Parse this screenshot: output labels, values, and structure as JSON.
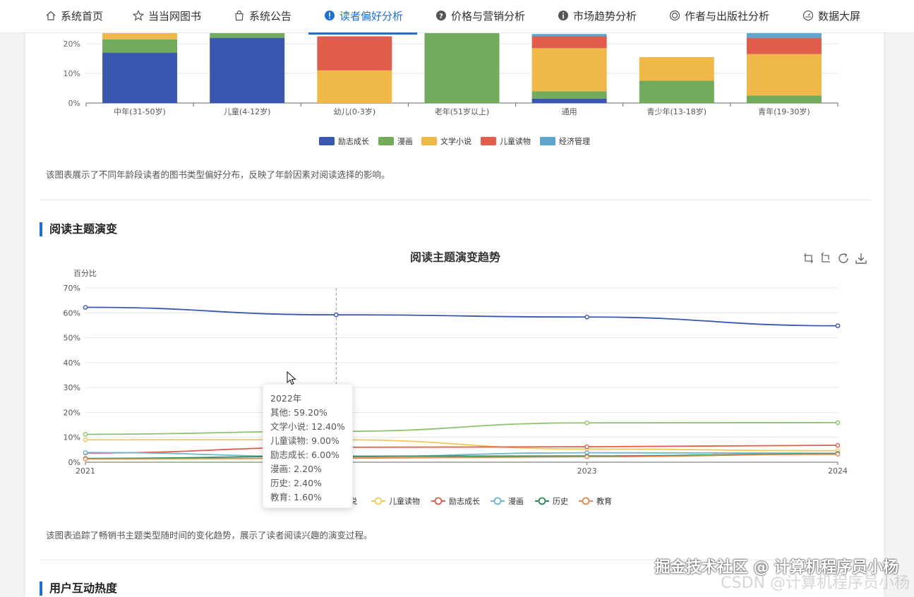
{
  "nav": {
    "items": [
      {
        "label": "系统首页",
        "icon": "home-icon"
      },
      {
        "label": "当当网图书",
        "icon": "star-icon"
      },
      {
        "label": "系统公告",
        "icon": "shopping-bag-icon"
      },
      {
        "label": "读者偏好分析",
        "icon": "info-filled-icon",
        "active": true
      },
      {
        "label": "价格与营销分析",
        "icon": "question-circle-icon"
      },
      {
        "label": "市场趋势分析",
        "icon": "info-circle-icon"
      },
      {
        "label": "作者与出版社分析",
        "icon": "disc-icon"
      },
      {
        "label": "数据大屏",
        "icon": "gauge-icon"
      }
    ],
    "accent": "#1f6fd1"
  },
  "age_chart": {
    "chart_data": {
      "type": "bar",
      "stacked": true,
      "categories": [
        "中年(31-50岁)",
        "儿童(4-12岁)",
        "幼儿(0-3岁)",
        "老年(51岁以上)",
        "通用",
        "青少年(13-18岁)",
        "青年(19-30岁)"
      ],
      "y_ticks": [
        "0%",
        "10%",
        "20%"
      ],
      "series": [
        {
          "name": "励志成长",
          "color": "#3a57b0",
          "values": [
            17,
            22,
            0,
            0,
            1.5,
            0,
            0
          ]
        },
        {
          "name": "漫画",
          "color": "#73ab5c",
          "values": [
            4.5,
            18,
            0,
            60,
            2.5,
            7.5,
            2.5
          ]
        },
        {
          "name": "文学小说",
          "color": "#f0b848",
          "values": [
            2.5,
            0,
            11,
            0,
            14.5,
            8,
            14
          ]
        },
        {
          "name": "儿童读物",
          "color": "#e05c4b",
          "values": [
            0,
            0,
            11.5,
            0,
            4,
            0,
            5.5
          ]
        },
        {
          "name": "经济管理",
          "color": "#5ea5d0",
          "values": [
            0,
            0,
            0,
            0,
            0.8,
            0,
            3
          ]
        }
      ],
      "legend_position": "bottom"
    }
  },
  "age_description": "该图表展示了不同年龄段读者的图书类型偏好分布，反映了年龄因素对阅读选择的影响。",
  "theme_section": {
    "title": "阅读主题演变",
    "chart_data": {
      "type": "line",
      "title": "阅读主题演变趋势",
      "ylabel": "百分比",
      "x": [
        "2021",
        "2022",
        "2023",
        "2024"
      ],
      "x_tick_labels": [
        "2021",
        "",
        "2023",
        "2024"
      ],
      "ylim": [
        0,
        70
      ],
      "y_ticks": [
        "0%",
        "10%",
        "20%",
        "30%",
        "40%",
        "50%",
        "60%",
        "70%"
      ],
      "series": [
        {
          "name": "其他",
          "color": "#3a57b0",
          "values": [
            62.2,
            59.2,
            58.3,
            54.8
          ]
        },
        {
          "name": "文学小说",
          "color": "#8cc26a",
          "values": [
            11.2,
            12.4,
            15.8,
            15.9
          ]
        },
        {
          "name": "儿童读物",
          "color": "#f0c75a",
          "values": [
            9.0,
            9.0,
            5.3,
            4.6
          ]
        },
        {
          "name": "励志成长",
          "color": "#e05c4b",
          "values": [
            3.7,
            6.0,
            6.2,
            6.8
          ]
        },
        {
          "name": "漫画",
          "color": "#6bb7cf",
          "values": [
            3.9,
            2.2,
            3.8,
            3.6
          ]
        },
        {
          "name": "历史",
          "color": "#2f8a55",
          "values": [
            1.5,
            2.4,
            2.5,
            3.4
          ]
        },
        {
          "name": "教育",
          "color": "#e08a4f",
          "values": [
            1.3,
            1.6,
            2.2,
            3.2
          ]
        }
      ],
      "legend_visible_labels": [
        "学小说",
        "儿童读物",
        "励志成长",
        "漫画",
        "历史",
        "教育"
      ],
      "legend_position": "bottom"
    },
    "tooltip": {
      "title": "2022年",
      "rows": [
        "其他: 59.20%",
        "文学小说: 12.40%",
        "儿童读物: 9.00%",
        "励志成长: 6.00%",
        "漫画: 2.20%",
        "历史: 2.40%",
        "教育: 1.60%"
      ]
    },
    "toolbox": [
      "zoom-icon",
      "zoom-reset-icon",
      "restore-icon",
      "download-icon"
    ],
    "description": "该图表追踪了畅销书主题类型随时间的变化趋势，展示了读者阅读兴趣的演变过程。"
  },
  "next_section": {
    "title": "用户互动热度"
  },
  "watermark": {
    "line1": "掘金技术社区 @ 计算机程序员小杨",
    "line2": "CSDN @计算机程序员小杨"
  }
}
